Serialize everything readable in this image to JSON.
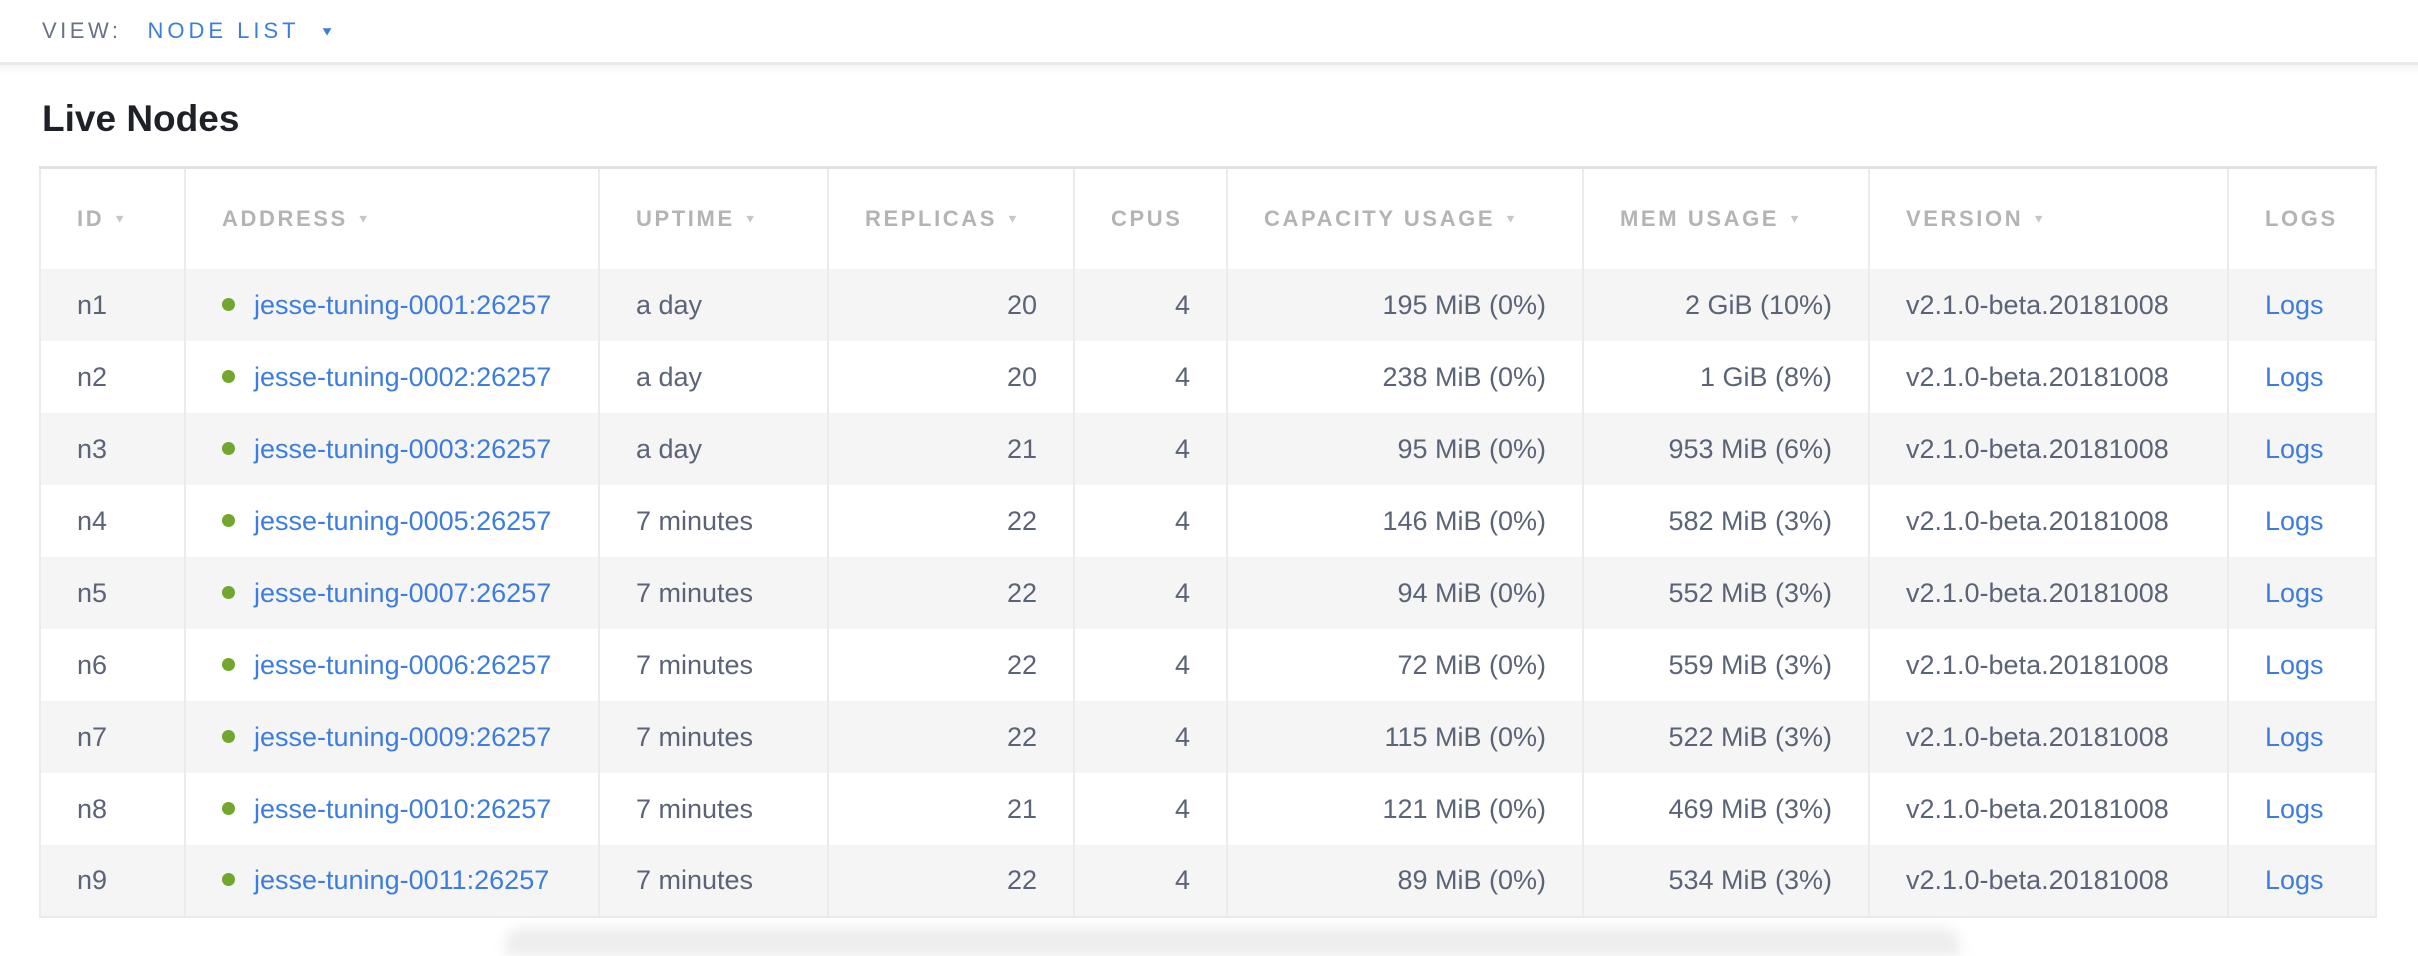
{
  "view_bar": {
    "label": "VIEW:",
    "selected": "NODE LIST",
    "caret": "▼"
  },
  "page": {
    "title": "Live Nodes"
  },
  "colors": {
    "link_blue": "#3d7dde",
    "live_dot_green": "#72a72f",
    "row_stripe": "#f5f5f5",
    "header_text": "#b4b4b4",
    "cell_text": "#5b6477"
  },
  "table": {
    "sort_icon": "▼",
    "columns": [
      {
        "label": "ID",
        "sortable": true
      },
      {
        "label": "ADDRESS",
        "sortable": true
      },
      {
        "label": "UPTIME",
        "sortable": true
      },
      {
        "label": "REPLICAS",
        "sortable": true
      },
      {
        "label": "CPUS",
        "sortable": false
      },
      {
        "label": "CAPACITY USAGE",
        "sortable": true
      },
      {
        "label": "MEM USAGE",
        "sortable": true
      },
      {
        "label": "VERSION",
        "sortable": true
      },
      {
        "label": "LOGS",
        "sortable": false
      }
    ],
    "rows": [
      {
        "id": "n1",
        "address": "jesse-tuning-0001:26257",
        "uptime": "a day",
        "replicas": "20",
        "cpus": "4",
        "capacity": "195 MiB (0%)",
        "mem": "2 GiB (10%)",
        "version": "v2.1.0-beta.20181008",
        "logs": "Logs"
      },
      {
        "id": "n2",
        "address": "jesse-tuning-0002:26257",
        "uptime": "a day",
        "replicas": "20",
        "cpus": "4",
        "capacity": "238 MiB (0%)",
        "mem": "1 GiB (8%)",
        "version": "v2.1.0-beta.20181008",
        "logs": "Logs"
      },
      {
        "id": "n3",
        "address": "jesse-tuning-0003:26257",
        "uptime": "a day",
        "replicas": "21",
        "cpus": "4",
        "capacity": "95 MiB (0%)",
        "mem": "953 MiB (6%)",
        "version": "v2.1.0-beta.20181008",
        "logs": "Logs"
      },
      {
        "id": "n4",
        "address": "jesse-tuning-0005:26257",
        "uptime": "7 minutes",
        "replicas": "22",
        "cpus": "4",
        "capacity": "146 MiB (0%)",
        "mem": "582 MiB (3%)",
        "version": "v2.1.0-beta.20181008",
        "logs": "Logs"
      },
      {
        "id": "n5",
        "address": "jesse-tuning-0007:26257",
        "uptime": "7 minutes",
        "replicas": "22",
        "cpus": "4",
        "capacity": "94 MiB (0%)",
        "mem": "552 MiB (3%)",
        "version": "v2.1.0-beta.20181008",
        "logs": "Logs"
      },
      {
        "id": "n6",
        "address": "jesse-tuning-0006:26257",
        "uptime": "7 minutes",
        "replicas": "22",
        "cpus": "4",
        "capacity": "72 MiB (0%)",
        "mem": "559 MiB (3%)",
        "version": "v2.1.0-beta.20181008",
        "logs": "Logs"
      },
      {
        "id": "n7",
        "address": "jesse-tuning-0009:26257",
        "uptime": "7 minutes",
        "replicas": "22",
        "cpus": "4",
        "capacity": "115 MiB (0%)",
        "mem": "522 MiB (3%)",
        "version": "v2.1.0-beta.20181008",
        "logs": "Logs"
      },
      {
        "id": "n8",
        "address": "jesse-tuning-0010:26257",
        "uptime": "7 minutes",
        "replicas": "21",
        "cpus": "4",
        "capacity": "121 MiB (0%)",
        "mem": "469 MiB (3%)",
        "version": "v2.1.0-beta.20181008",
        "logs": "Logs"
      },
      {
        "id": "n9",
        "address": "jesse-tuning-0011:26257",
        "uptime": "7 minutes",
        "replicas": "22",
        "cpus": "4",
        "capacity": "89 MiB (0%)",
        "mem": "534 MiB (3%)",
        "version": "v2.1.0-beta.20181008",
        "logs": "Logs"
      }
    ]
  }
}
